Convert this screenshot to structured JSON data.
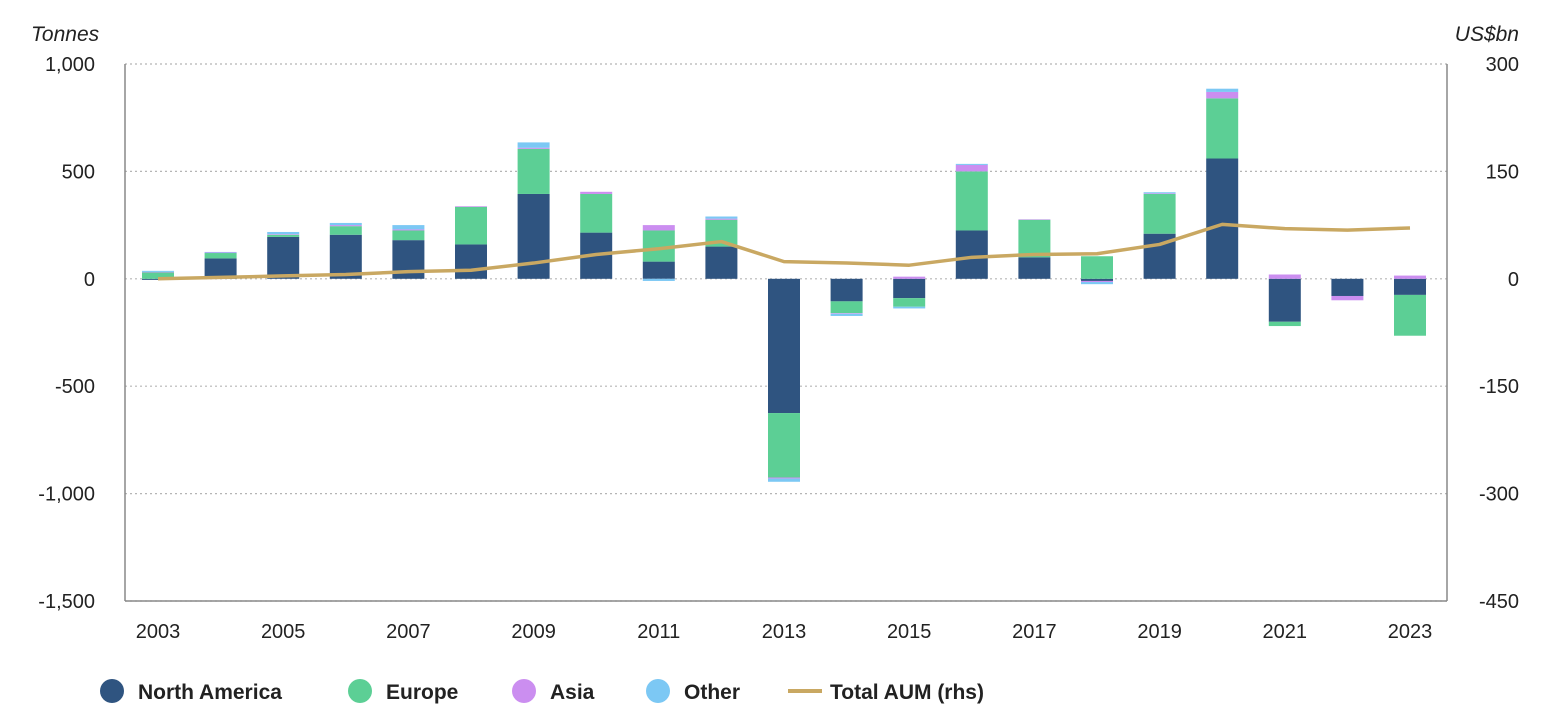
{
  "chart_data": {
    "type": "bar",
    "stacked": true,
    "left_axis_unit": "Tonnes",
    "right_axis_unit": "US$bn",
    "ylim_left": [
      -1500,
      1000
    ],
    "ylim_right": [
      -450,
      300
    ],
    "yticks_left": [
      1000,
      500,
      0,
      -500,
      -1000,
      -1500
    ],
    "yticks_left_labels": [
      "1,000",
      "500",
      "0",
      "-500",
      "-1,000",
      "-1,500"
    ],
    "yticks_right": [
      300,
      150,
      0,
      -150,
      -300,
      -450
    ],
    "yticks_right_labels": [
      "300",
      "150",
      "0",
      "-150",
      "-300",
      "-450"
    ],
    "categories": [
      "2003",
      "2004",
      "2005",
      "2006",
      "2007",
      "2008",
      "2009",
      "2010",
      "2011",
      "2012",
      "2013",
      "2014",
      "2015",
      "2016",
      "2017",
      "2018",
      "2019",
      "2020",
      "2021",
      "2022",
      "2023"
    ],
    "x_tick_labels": [
      "2003",
      "2005",
      "2007",
      "2009",
      "2011",
      "2013",
      "2015",
      "2017",
      "2019",
      "2021",
      "2023"
    ],
    "grid": true,
    "legend_position": "bottom",
    "series": [
      {
        "name": "North America",
        "color": "#2f5480",
        "values": [
          -5,
          95,
          195,
          205,
          180,
          160,
          395,
          215,
          80,
          150,
          -625,
          -105,
          -90,
          225,
          100,
          -10,
          210,
          560,
          -200,
          -80,
          -75
        ]
      },
      {
        "name": "Europe",
        "color": "#5ccf95",
        "values": [
          30,
          25,
          10,
          40,
          45,
          175,
          210,
          180,
          145,
          125,
          -300,
          -55,
          -40,
          275,
          175,
          105,
          185,
          280,
          -20,
          0,
          -190
        ]
      },
      {
        "name": "Asia",
        "color": "#cb8ef0",
        "values": [
          2,
          3,
          3,
          5,
          5,
          3,
          5,
          10,
          25,
          5,
          -5,
          -3,
          10,
          30,
          2,
          -5,
          3,
          30,
          20,
          -20,
          15
        ]
      },
      {
        "name": "Other",
        "color": "#7cc8f4",
        "values": [
          5,
          2,
          10,
          10,
          20,
          0,
          25,
          0,
          -10,
          10,
          -15,
          -10,
          -8,
          5,
          0,
          -10,
          5,
          15,
          0,
          0,
          0
        ]
      }
    ],
    "line_series": {
      "name": "Total AUM (rhs)",
      "color": "#c9a862",
      "axis": "right",
      "values": [
        0,
        2,
        4,
        6,
        10,
        12,
        22,
        34,
        42,
        52,
        24,
        22,
        19,
        30,
        34,
        35,
        48,
        76,
        70,
        68,
        71
      ]
    }
  }
}
